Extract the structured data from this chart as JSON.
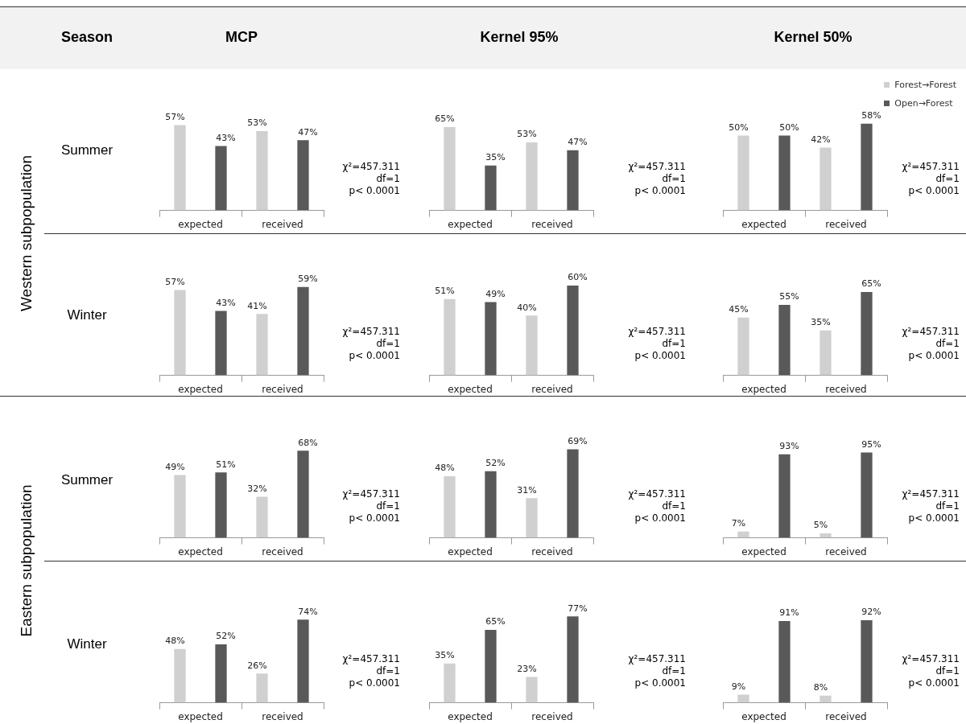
{
  "chart_data": [
    {
      "type": "other",
      "annotations": [
        "Season",
        "MCP",
        "Kernel 95%",
        "Kernel 50%",
        "Western subpopulation",
        "Eastern subpopulation",
        "Summer",
        "Winter",
        "Summer",
        "Winter"
      ]
    },
    {
      "type": "bar",
      "categories": [
        "expected",
        "received"
      ],
      "series": [
        {
          "color": "#d0d0d0",
          "values": [
            57,
            53
          ],
          "value_labels": [
            "57%",
            "53%"
          ]
        },
        {
          "color": "#595959",
          "values": [
            43,
            47
          ],
          "value_labels": [
            "43%",
            "47%"
          ]
        }
      ],
      "annotations": [
        "χ²=457.311",
        "df=1",
        "p< 0.0001"
      ]
    },
    {
      "type": "bar",
      "categories": [
        "expected",
        "received"
      ],
      "series": [
        {
          "color": "#d0d0d0",
          "values": [
            65,
            53
          ],
          "value_labels": [
            "65%",
            "53%"
          ]
        },
        {
          "color": "#595959",
          "values": [
            35,
            47
          ],
          "value_labels": [
            "35%",
            "47%"
          ]
        }
      ],
      "annotations": [
        "χ²=457.311",
        "df=1",
        "p< 0.0001"
      ]
    },
    {
      "type": "bar",
      "categories": [
        "expected",
        "received"
      ],
      "legend": "top right",
      "series": [
        {
          "name": "Forest→Forest",
          "color": "#d0d0d0",
          "values": [
            50,
            42
          ],
          "value_labels": [
            "50%",
            "42%"
          ]
        },
        {
          "name": "Open→Forest",
          "color": "#595959",
          "values": [
            50,
            58
          ],
          "value_labels": [
            "50%",
            "58%"
          ]
        }
      ],
      "annotations": [
        "χ²=457.311",
        "df=1",
        "p< 0.0001"
      ]
    },
    {
      "type": "bar",
      "categories": [
        "expected",
        "received"
      ],
      "series": [
        {
          "color": "#d0d0d0",
          "values": [
            57,
            41
          ],
          "value_labels": [
            "57%",
            "41%"
          ]
        },
        {
          "color": "#595959",
          "values": [
            43,
            59
          ],
          "value_labels": [
            "43%",
            "59%"
          ]
        }
      ],
      "annotations": [
        "χ²=457.311",
        "df=1",
        "p< 0.0001"
      ]
    },
    {
      "type": "bar",
      "categories": [
        "expected",
        "received"
      ],
      "series": [
        {
          "color": "#d0d0d0",
          "values": [
            51,
            40
          ],
          "value_labels": [
            "51%",
            "40%"
          ]
        },
        {
          "color": "#595959",
          "values": [
            49,
            60
          ],
          "value_labels": [
            "49%",
            "60%"
          ]
        }
      ],
      "annotations": [
        "χ²=457.311",
        "df=1",
        "p< 0.0001"
      ]
    },
    {
      "type": "bar",
      "categories": [
        "expected",
        "received"
      ],
      "series": [
        {
          "color": "#d0d0d0",
          "values": [
            45,
            35
          ],
          "value_labels": [
            "45%",
            "35%"
          ]
        },
        {
          "color": "#595959",
          "values": [
            55,
            65
          ],
          "value_labels": [
            "55%",
            "65%"
          ]
        }
      ],
      "annotations": [
        "χ²=457.311",
        "df=1",
        "p< 0.0001"
      ]
    },
    {
      "type": "bar",
      "categories": [
        "expected",
        "received"
      ],
      "series": [
        {
          "color": "#d0d0d0",
          "values": [
            49,
            32
          ],
          "value_labels": [
            "49%",
            "32%"
          ]
        },
        {
          "color": "#595959",
          "values": [
            51,
            68
          ],
          "value_labels": [
            "51%",
            "68%"
          ]
        }
      ],
      "annotations": [
        "χ²=457.311",
        "df=1",
        "p< 0.0001"
      ]
    },
    {
      "type": "bar",
      "categories": [
        "expected",
        "received"
      ],
      "series": [
        {
          "color": "#d0d0d0",
          "values": [
            48,
            31
          ],
          "value_labels": [
            "48%",
            "31%"
          ]
        },
        {
          "color": "#595959",
          "values": [
            52,
            69
          ],
          "value_labels": [
            "52%",
            "69%"
          ]
        }
      ],
      "annotations": [
        "χ²=457.311",
        "df=1",
        "p< 0.0001"
      ]
    },
    {
      "type": "bar",
      "categories": [
        "expected",
        "received"
      ],
      "series": [
        {
          "color": "#d0d0d0",
          "values": [
            7,
            5
          ],
          "value_labels": [
            "7%",
            "5%"
          ]
        },
        {
          "color": "#595959",
          "values": [
            93,
            95
          ],
          "value_labels": [
            "93%",
            "95%"
          ]
        }
      ],
      "annotations": [
        "χ²=457.311",
        "df=1",
        "p< 0.0001"
      ]
    },
    {
      "type": "bar",
      "categories": [
        "expected",
        "received"
      ],
      "series": [
        {
          "color": "#d0d0d0",
          "values": [
            48,
            26
          ],
          "value_labels": [
            "48%",
            "26%"
          ]
        },
        {
          "color": "#595959",
          "values": [
            52,
            74
          ],
          "value_labels": [
            "52%",
            "74%"
          ]
        }
      ],
      "annotations": [
        "χ²=457.311",
        "df=1",
        "p< 0.0001"
      ]
    },
    {
      "type": "bar",
      "categories": [
        "expected",
        "received"
      ],
      "series": [
        {
          "color": "#d0d0d0",
          "values": [
            35,
            23
          ],
          "value_labels": [
            "35%",
            "23%"
          ]
        },
        {
          "color": "#595959",
          "values": [
            65,
            77
          ],
          "value_labels": [
            "65%",
            "77%"
          ]
        }
      ],
      "annotations": [
        "χ²=457.311",
        "df=1",
        "p< 0.0001"
      ]
    },
    {
      "type": "bar",
      "categories": [
        "expected",
        "received"
      ],
      "series": [
        {
          "color": "#d0d0d0",
          "values": [
            9,
            8
          ],
          "value_labels": [
            "9%",
            "8%"
          ]
        },
        {
          "color": "#595959",
          "values": [
            91,
            92
          ],
          "value_labels": [
            "91%",
            "92%"
          ]
        }
      ],
      "annotations": [
        "χ²=457.311",
        "df=1",
        "p< 0.0001"
      ]
    }
  ]
}
